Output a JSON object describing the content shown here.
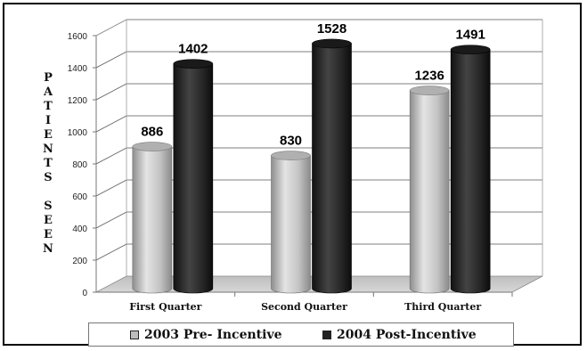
{
  "chart_data": {
    "type": "bar",
    "style": "3d-cylinder",
    "ylabel": "PATIENTS SEEN",
    "categories": [
      "First Quarter",
      "Second Quarter",
      "Third Quarter"
    ],
    "ylim": [
      0,
      1600
    ],
    "yticks": [
      0,
      200,
      400,
      600,
      800,
      1000,
      1200,
      1400,
      1600
    ],
    "series": [
      {
        "name": "2003 Pre- Incentive",
        "values": [
          886,
          830,
          1236
        ],
        "color": "#bdbdbd"
      },
      {
        "name": "2004 Post-Incentive",
        "values": [
          1402,
          1528,
          1491
        ],
        "color": "#222222"
      }
    ],
    "data_labels": [
      "886",
      "830",
      "1236",
      "1402",
      "1528",
      "1491"
    ],
    "grid": true,
    "legend_position": "bottom"
  }
}
